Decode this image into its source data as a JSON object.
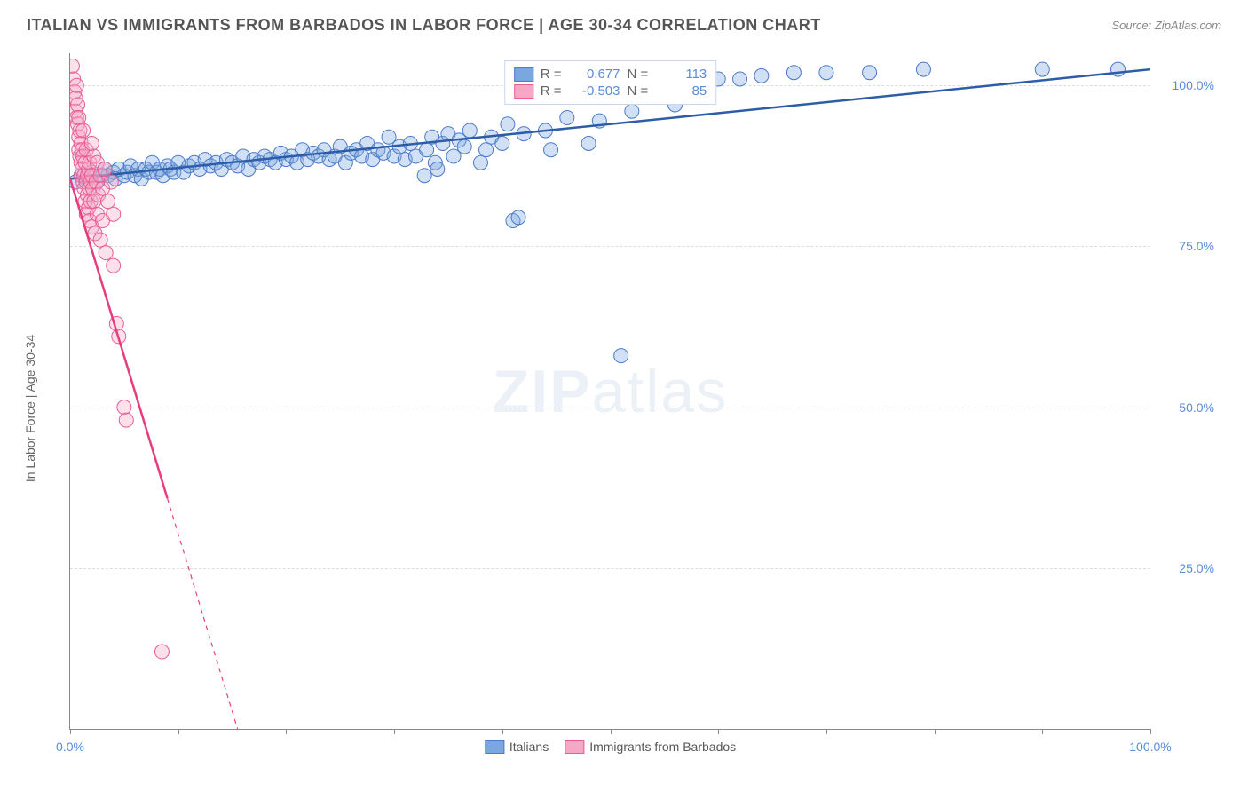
{
  "header": {
    "title": "ITALIAN VS IMMIGRANTS FROM BARBADOS IN LABOR FORCE | AGE 30-34 CORRELATION CHART",
    "source": "Source: ZipAtlas.com"
  },
  "watermark": {
    "bold": "ZIP",
    "rest": "atlas"
  },
  "chart": {
    "type": "scatter",
    "background_color": "#ffffff",
    "grid_color": "#dddddd",
    "axis_color": "#888888",
    "xlim": [
      0,
      100
    ],
    "ylim": [
      0,
      105
    ],
    "ytick_values": [
      25,
      50,
      75,
      100
    ],
    "ytick_labels": [
      "25.0%",
      "50.0%",
      "75.0%",
      "100.0%"
    ],
    "xtick_values": [
      0,
      10,
      20,
      30,
      40,
      50,
      60,
      70,
      80,
      90,
      100
    ],
    "xtick_end_labels": {
      "min": "0.0%",
      "max": "100.0%"
    },
    "ylabel": "In Labor Force | Age 30-34",
    "label_fontsize": 14,
    "tick_fontsize": 14,
    "tick_color": "#5b8dd6",
    "marker_radius": 8,
    "marker_opacity": 0.35,
    "line_width": 2.5,
    "series": [
      {
        "id": "italians",
        "label": "Italians",
        "fill_color": "#7ba7e0",
        "stroke_color": "#4a7bc8",
        "line_color": "#2e5da8",
        "R": "0.677",
        "N": "113",
        "regression": {
          "x1": 0,
          "y1": 85.5,
          "x2": 100,
          "y2": 102.5
        },
        "points": [
          [
            0.5,
            85
          ],
          [
            1,
            86
          ],
          [
            1.5,
            85.5
          ],
          [
            2,
            86.5
          ],
          [
            2.5,
            85
          ],
          [
            3,
            86
          ],
          [
            3.2,
            87
          ],
          [
            3.5,
            86
          ],
          [
            4,
            86.5
          ],
          [
            4.2,
            85.5
          ],
          [
            4.5,
            87
          ],
          [
            5,
            86
          ],
          [
            5.3,
            86.5
          ],
          [
            5.6,
            87.5
          ],
          [
            6,
            86
          ],
          [
            6.3,
            87
          ],
          [
            6.6,
            85.5
          ],
          [
            7,
            87
          ],
          [
            7.3,
            86.5
          ],
          [
            7.6,
            88
          ],
          [
            8,
            86.5
          ],
          [
            8.3,
            87
          ],
          [
            8.6,
            86
          ],
          [
            9,
            87.5
          ],
          [
            9.3,
            87
          ],
          [
            9.6,
            86.5
          ],
          [
            10,
            88
          ],
          [
            10.5,
            86.5
          ],
          [
            11,
            87.5
          ],
          [
            11.5,
            88
          ],
          [
            12,
            87
          ],
          [
            12.5,
            88.5
          ],
          [
            13,
            87.5
          ],
          [
            13.5,
            88
          ],
          [
            14,
            87
          ],
          [
            14.5,
            88.5
          ],
          [
            15,
            88
          ],
          [
            15.5,
            87.5
          ],
          [
            16,
            89
          ],
          [
            16.5,
            87
          ],
          [
            17,
            88.5
          ],
          [
            17.5,
            88
          ],
          [
            18,
            89
          ],
          [
            18.5,
            88.5
          ],
          [
            19,
            88
          ],
          [
            19.5,
            89.5
          ],
          [
            20,
            88.5
          ],
          [
            20.5,
            89
          ],
          [
            21,
            88
          ],
          [
            21.5,
            90
          ],
          [
            22,
            88.5
          ],
          [
            22.5,
            89.5
          ],
          [
            23,
            89
          ],
          [
            23.5,
            90
          ],
          [
            24,
            88.5
          ],
          [
            24.5,
            89
          ],
          [
            25,
            90.5
          ],
          [
            25.5,
            88
          ],
          [
            26,
            89.5
          ],
          [
            26.5,
            90
          ],
          [
            27,
            89
          ],
          [
            27.5,
            91
          ],
          [
            28,
            88.5
          ],
          [
            28.5,
            90
          ],
          [
            29,
            89.5
          ],
          [
            29.5,
            92
          ],
          [
            30,
            89
          ],
          [
            30.5,
            90.5
          ],
          [
            31,
            88.5
          ],
          [
            31.5,
            91
          ],
          [
            32,
            89
          ],
          [
            32.8,
            86
          ],
          [
            33,
            90
          ],
          [
            33.5,
            92
          ],
          [
            33.8,
            88
          ],
          [
            34,
            87
          ],
          [
            34.5,
            91
          ],
          [
            35,
            92.5
          ],
          [
            35.5,
            89
          ],
          [
            36,
            91.5
          ],
          [
            36.5,
            90.5
          ],
          [
            37,
            93
          ],
          [
            38,
            88
          ],
          [
            38.5,
            90
          ],
          [
            39,
            92
          ],
          [
            40,
            91
          ],
          [
            40.5,
            94
          ],
          [
            41,
            79
          ],
          [
            41.5,
            79.5
          ],
          [
            42,
            92.5
          ],
          [
            44,
            93
          ],
          [
            44.5,
            90
          ],
          [
            46,
            95
          ],
          [
            48,
            91
          ],
          [
            49,
            94.5
          ],
          [
            50,
            101
          ],
          [
            51,
            58
          ],
          [
            52,
            96
          ],
          [
            54,
            101
          ],
          [
            56,
            97
          ],
          [
            58,
            100
          ],
          [
            60,
            101
          ],
          [
            62,
            101
          ],
          [
            64,
            101.5
          ],
          [
            67,
            102
          ],
          [
            70,
            102
          ],
          [
            74,
            102
          ],
          [
            79,
            102.5
          ],
          [
            90,
            102.5
          ],
          [
            97,
            102.5
          ]
        ]
      },
      {
        "id": "barbados",
        "label": "Immigrants from Barbados",
        "fill_color": "#f5a8c5",
        "stroke_color": "#e85d96",
        "line_color": "#e63d7e",
        "R": "-0.503",
        "N": "85",
        "regression": {
          "x1": 0,
          "y1": 85.5,
          "x2": 15.5,
          "y2": 0
        },
        "regression_dash_after": 9,
        "points": [
          [
            0.2,
            103
          ],
          [
            0.3,
            101
          ],
          [
            0.4,
            99
          ],
          [
            0.5,
            98
          ],
          [
            0.5,
            96
          ],
          [
            0.6,
            95
          ],
          [
            0.6,
            100
          ],
          [
            0.7,
            94
          ],
          [
            0.7,
            97
          ],
          [
            0.8,
            92
          ],
          [
            0.8,
            90
          ],
          [
            0.8,
            95
          ],
          [
            0.9,
            89
          ],
          [
            0.9,
            93
          ],
          [
            1,
            88
          ],
          [
            1,
            91
          ],
          [
            1,
            86
          ],
          [
            1.1,
            87
          ],
          [
            1.1,
            90
          ],
          [
            1.2,
            85
          ],
          [
            1.2,
            89
          ],
          [
            1.2,
            93
          ],
          [
            1.3,
            86
          ],
          [
            1.3,
            84
          ],
          [
            1.4,
            88
          ],
          [
            1.4,
            82
          ],
          [
            1.5,
            85
          ],
          [
            1.5,
            90
          ],
          [
            1.5,
            80
          ],
          [
            1.6,
            86
          ],
          [
            1.6,
            83
          ],
          [
            1.7,
            87
          ],
          [
            1.7,
            81
          ],
          [
            1.8,
            84
          ],
          [
            1.8,
            88
          ],
          [
            1.8,
            79
          ],
          [
            1.9,
            85
          ],
          [
            1.9,
            82
          ],
          [
            2,
            86
          ],
          [
            2,
            78
          ],
          [
            2,
            91
          ],
          [
            2.1,
            84
          ],
          [
            2.2,
            82
          ],
          [
            2.2,
            89
          ],
          [
            2.3,
            77
          ],
          [
            2.4,
            85
          ],
          [
            2.5,
            80
          ],
          [
            2.5,
            88
          ],
          [
            2.6,
            83
          ],
          [
            2.8,
            86
          ],
          [
            2.8,
            76
          ],
          [
            3,
            84
          ],
          [
            3,
            79
          ],
          [
            3.2,
            87
          ],
          [
            3.3,
            74
          ],
          [
            3.5,
            82
          ],
          [
            3.8,
            85
          ],
          [
            4,
            80
          ],
          [
            4,
            72
          ],
          [
            4.3,
            63
          ],
          [
            4.5,
            61
          ],
          [
            5,
            50
          ],
          [
            5.2,
            48
          ],
          [
            8.5,
            12
          ]
        ]
      }
    ]
  },
  "legend_top": {
    "row_labels": {
      "r": "R =",
      "n": "N ="
    }
  }
}
